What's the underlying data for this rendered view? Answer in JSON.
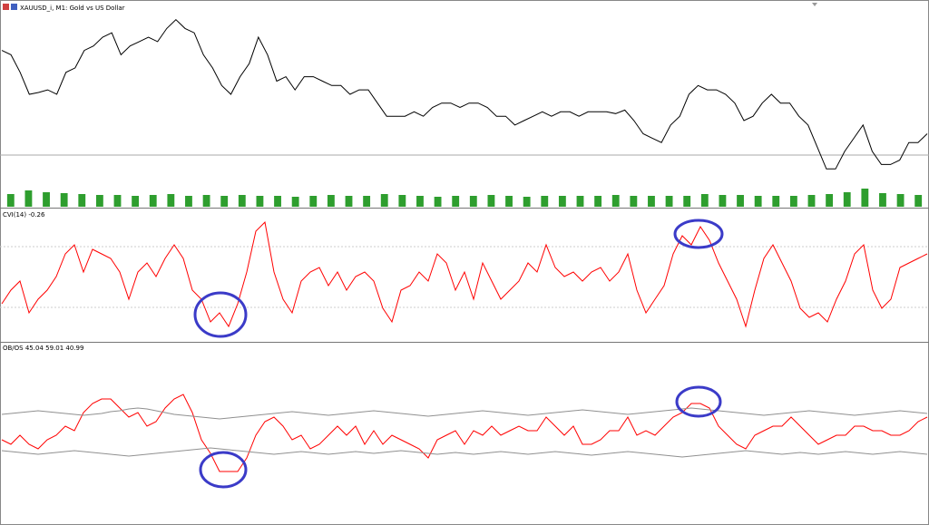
{
  "chart_data": [
    {
      "type": "line",
      "title": "XAUUSD_i, M1: Gold vs US Dollar",
      "color": "#000000",
      "ylim": [
        0,
        220
      ],
      "values": [
        175,
        170,
        150,
        125,
        127,
        130,
        125,
        150,
        155,
        175,
        180,
        190,
        195,
        170,
        180,
        185,
        190,
        185,
        200,
        210,
        200,
        195,
        170,
        155,
        135,
        125,
        145,
        160,
        190,
        170,
        140,
        145,
        130,
        145,
        145,
        140,
        135,
        135,
        125,
        130,
        130,
        115,
        100,
        100,
        100,
        105,
        100,
        110,
        115,
        115,
        110,
        115,
        115,
        110,
        100,
        100,
        90,
        95,
        100,
        105,
        100,
        105,
        105,
        100,
        105,
        105,
        105,
        103,
        107,
        95,
        80,
        75,
        70,
        90,
        100,
        125,
        135,
        130,
        130,
        125,
        115,
        95,
        100,
        115,
        125,
        115,
        115,
        100,
        90,
        65,
        40,
        40,
        60,
        75,
        90,
        60,
        45,
        45,
        50,
        70,
        70,
        80
      ]
    },
    {
      "type": "bar",
      "color": "#2e9e2e",
      "ylim": [
        0,
        25
      ],
      "values": [
        14,
        18,
        16,
        15,
        14,
        13,
        13,
        12,
        13,
        14,
        12,
        13,
        12,
        13,
        12,
        12,
        11,
        12,
        13,
        12,
        12,
        14,
        13,
        12,
        11,
        12,
        12,
        13,
        12,
        11,
        12,
        12,
        12,
        12,
        13,
        12,
        12,
        12,
        12,
        14,
        13,
        13,
        12,
        12,
        12,
        13,
        14,
        16,
        20,
        15,
        14,
        13
      ]
    },
    {
      "type": "line",
      "title": "CVI(14) -0.26",
      "color": "#ff0000",
      "ylim": [
        0,
        130
      ],
      "values": [
        37,
        52,
        62,
        27,
        42,
        52,
        67,
        92,
        102,
        72,
        97,
        92,
        87,
        72,
        42,
        72,
        82,
        67,
        87,
        102,
        87,
        52,
        42,
        17,
        27,
        12,
        37,
        72,
        117,
        127,
        72,
        42,
        27,
        62,
        72,
        77,
        57,
        72,
        52,
        67,
        72,
        62,
        32,
        17,
        52,
        57,
        72,
        62,
        92,
        82,
        52,
        72,
        42,
        82,
        62,
        42,
        52,
        62,
        82,
        72,
        102,
        77,
        67,
        72,
        62,
        72,
        77,
        62,
        72,
        92,
        52,
        27,
        42,
        57,
        92,
        112,
        102,
        122,
        107,
        82,
        62,
        42,
        12,
        52,
        87,
        102,
        82,
        62,
        32,
        22,
        27,
        17,
        42,
        62,
        92,
        102,
        52,
        32,
        42,
        77,
        82,
        87,
        92
      ]
    },
    {
      "type": "line",
      "title": "OB/OS 45.04 59.01 40.99",
      "ylim": [
        0,
        185
      ],
      "series": [
        {
          "color": "#ff0000",
          "values": [
            90,
            85,
            95,
            85,
            80,
            90,
            95,
            105,
            100,
            120,
            130,
            135,
            135,
            125,
            115,
            120,
            105,
            110,
            125,
            135,
            140,
            120,
            90,
            75,
            55,
            55,
            55,
            70,
            95,
            110,
            115,
            105,
            90,
            95,
            80,
            85,
            95,
            105,
            95,
            105,
            85,
            100,
            85,
            95,
            90,
            85,
            80,
            70,
            90,
            95,
            100,
            85,
            100,
            95,
            105,
            95,
            100,
            105,
            100,
            100,
            115,
            105,
            95,
            105,
            85,
            85,
            90,
            100,
            100,
            115,
            95,
            100,
            95,
            105,
            115,
            120,
            130,
            130,
            125,
            105,
            95,
            85,
            80,
            95,
            100,
            105,
            105,
            115,
            105,
            95,
            85,
            90,
            95,
            95,
            105,
            105,
            100,
            100,
            95,
            95,
            100,
            110,
            115
          ]
        },
        {
          "color": "#909090",
          "values": [
            118,
            119,
            120,
            121,
            122,
            121,
            120,
            119,
            118,
            117,
            118,
            119,
            121,
            122,
            124,
            125,
            124,
            122,
            120,
            118,
            117,
            116,
            115,
            114,
            113,
            114,
            115,
            116,
            117,
            118,
            119,
            120,
            121,
            120,
            119,
            118,
            117,
            118,
            119,
            120,
            121,
            122,
            121,
            120,
            119,
            118,
            117,
            116,
            117,
            118,
            119,
            120,
            121,
            122,
            121,
            120,
            119,
            118,
            117,
            118,
            119,
            120,
            121,
            122,
            123,
            122,
            121,
            120,
            119,
            118,
            119,
            120,
            121,
            122,
            123,
            124,
            125,
            124,
            123,
            122,
            121,
            120,
            119,
            118,
            117,
            118,
            119,
            120,
            121,
            122,
            121,
            120,
            119,
            118,
            117,
            118,
            119,
            120,
            121,
            122,
            121,
            120,
            119
          ]
        },
        {
          "color": "#909090",
          "values": [
            78,
            77,
            76,
            75,
            74,
            75,
            76,
            77,
            78,
            77,
            76,
            75,
            74,
            73,
            72,
            73,
            74,
            75,
            76,
            77,
            78,
            79,
            80,
            81,
            80,
            79,
            78,
            77,
            76,
            75,
            74,
            75,
            76,
            77,
            76,
            75,
            74,
            75,
            76,
            77,
            76,
            75,
            76,
            77,
            78,
            77,
            76,
            75,
            74,
            75,
            76,
            75,
            74,
            75,
            76,
            77,
            76,
            75,
            74,
            75,
            76,
            77,
            76,
            75,
            74,
            73,
            74,
            75,
            76,
            77,
            76,
            75,
            74,
            73,
            72,
            71,
            72,
            73,
            74,
            75,
            76,
            77,
            78,
            77,
            76,
            75,
            74,
            75,
            76,
            75,
            74,
            75,
            76,
            77,
            76,
            75,
            74,
            75,
            76,
            77,
            76,
            75,
            74
          ]
        }
      ]
    }
  ]
}
